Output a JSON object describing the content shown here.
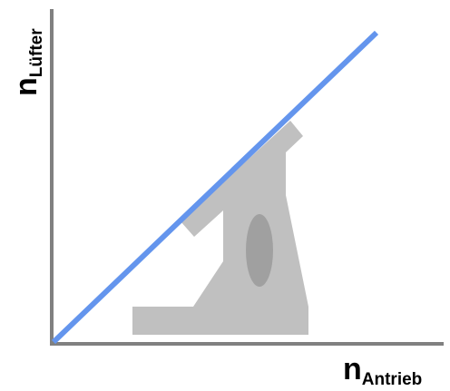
{
  "diagram": {
    "y_axis": {
      "letter": "n",
      "subscript": "Lüfter"
    },
    "x_axis": {
      "letter": "n",
      "subscript": "Antrieb"
    },
    "colors": {
      "axis": "#808080",
      "line": "#6495ED",
      "pump_body": "#C0C0C0",
      "pump_window": "#A0A0A0",
      "label": "#000000"
    },
    "elements": {
      "characteristic_line": "straight line from origin, proportional relation",
      "illustration": "grey fan/pump housing silhouette"
    }
  }
}
